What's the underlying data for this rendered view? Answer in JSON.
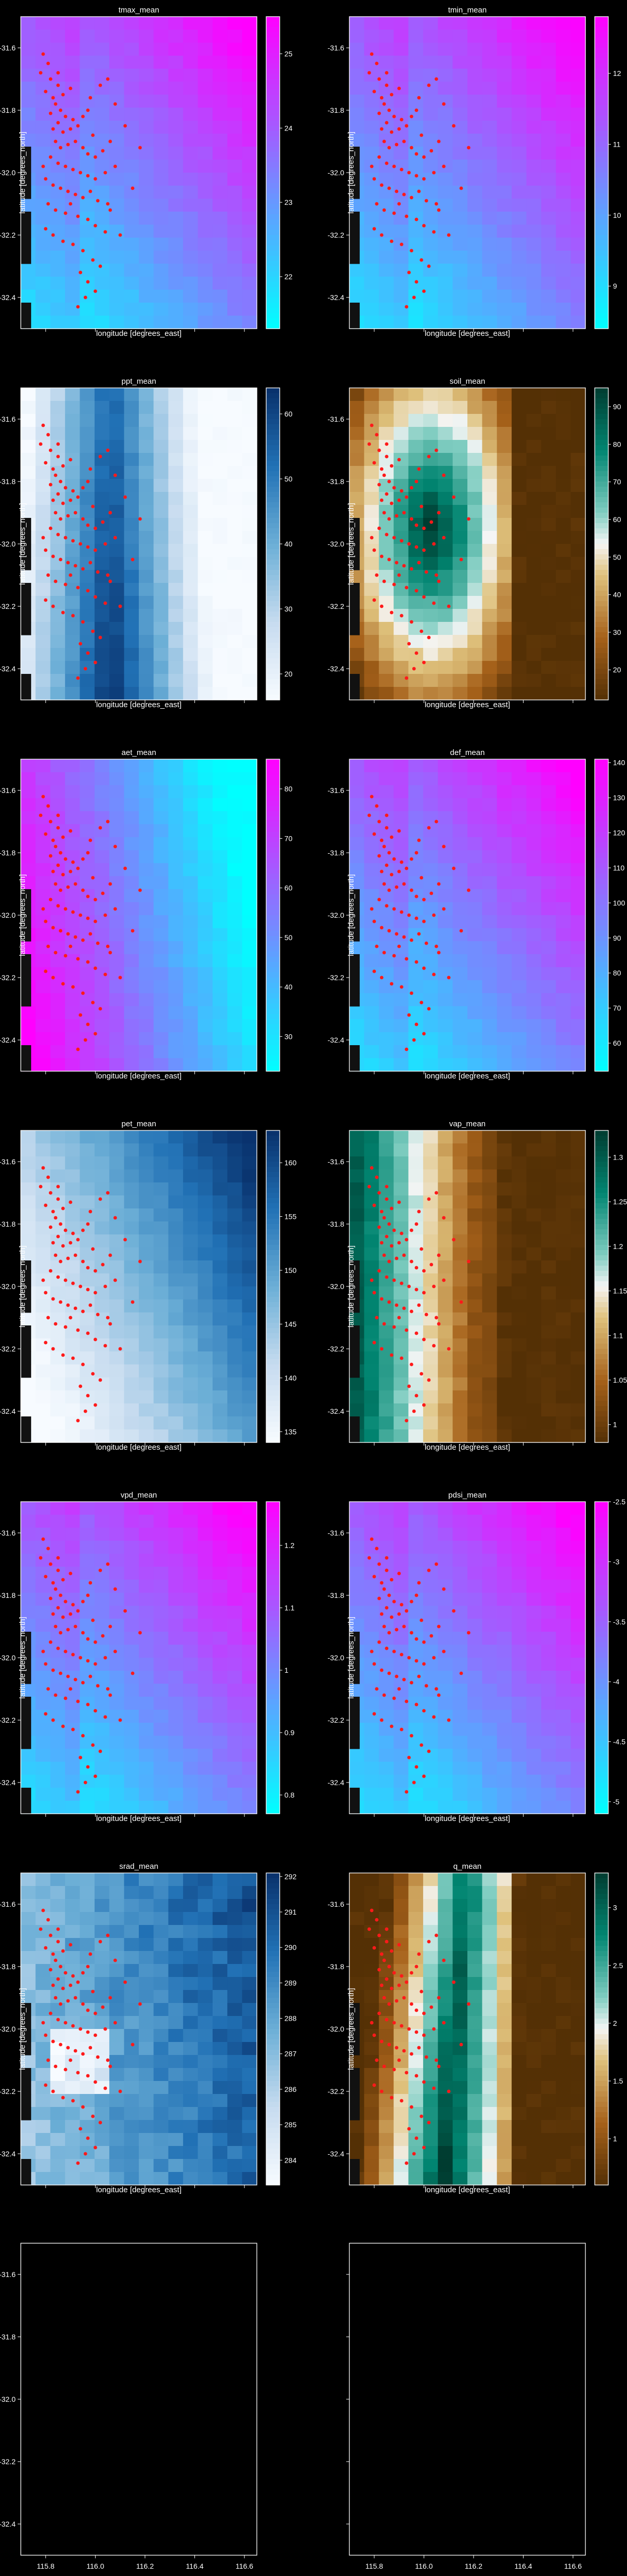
{
  "figure": {
    "background": "#000000",
    "point_color": "#ff1a1a"
  },
  "chart_data": [
    {
      "type": "heatmap",
      "title": "tmax_mean",
      "xlabel": "longitude [degrees_east]",
      "ylabel": "latitude [degrees_north]",
      "colormap": "cool",
      "pattern": "diag_low_left",
      "colorbar": {
        "ticks": [
          22,
          23,
          24,
          25
        ],
        "vmin": 21.3,
        "vmax": 25.5
      },
      "show_yticks": true,
      "show_xticks": false
    },
    {
      "type": "heatmap",
      "title": "tmin_mean",
      "xlabel": "longitude [degrees_east]",
      "ylabel": "latitude [degrees_north]",
      "colormap": "cool",
      "pattern": "diag_low_left",
      "colorbar": {
        "ticks": [
          9,
          10,
          11,
          12
        ],
        "vmin": 8.4,
        "vmax": 12.8
      },
      "show_yticks": true,
      "show_xticks": false
    },
    {
      "type": "heatmap",
      "title": "ppt_mean",
      "xlabel": "longitude [degrees_east]",
      "ylabel": "latitude [degrees_north]",
      "colormap": "blues",
      "pattern": "center_band",
      "colorbar": {
        "ticks": [
          20,
          30,
          40,
          50,
          60
        ],
        "vmin": 16,
        "vmax": 64
      },
      "show_yticks": true,
      "show_xticks": false
    },
    {
      "type": "heatmap",
      "title": "soil_mean",
      "xlabel": "longitude [degrees_east]",
      "ylabel": "latitude [degrees_north]",
      "colormap": "brbg",
      "pattern": "blob_center",
      "colorbar": {
        "ticks": [
          20,
          30,
          40,
          50,
          60,
          70,
          80,
          90
        ],
        "vmin": 12,
        "vmax": 95
      },
      "show_yticks": true,
      "show_xticks": false
    },
    {
      "type": "heatmap",
      "title": "aet_mean",
      "xlabel": "longitude [degrees_east]",
      "ylabel": "latitude [degrees_north]",
      "colormap": "cool",
      "pattern": "diag_high_left",
      "colorbar": {
        "ticks": [
          30,
          40,
          50,
          60,
          70,
          80
        ],
        "vmin": 23,
        "vmax": 86
      },
      "show_yticks": true,
      "show_xticks": false
    },
    {
      "type": "heatmap",
      "title": "def_mean",
      "xlabel": "longitude [degrees_east]",
      "ylabel": "latitude [degrees_north]",
      "colormap": "cool",
      "pattern": "diag_low_left",
      "colorbar": {
        "ticks": [
          60,
          70,
          80,
          90,
          100,
          110,
          120,
          130,
          140
        ],
        "vmin": 52,
        "vmax": 141
      },
      "show_yticks": true,
      "show_xticks": false
    },
    {
      "type": "heatmap",
      "title": "pet_mean",
      "xlabel": "longitude [degrees_east]",
      "ylabel": "latitude [degrees_north]",
      "colormap": "blues",
      "pattern": "diag_low_left_rev",
      "colorbar": {
        "ticks": [
          135,
          140,
          145,
          150,
          155,
          160
        ],
        "vmin": 134,
        "vmax": 163
      },
      "show_yticks": true,
      "show_xticks": false
    },
    {
      "type": "heatmap",
      "title": "vap_mean",
      "xlabel": "longitude [degrees_east]",
      "ylabel": "latitude [degrees_north]",
      "colormap": "brbg",
      "pattern": "left_high",
      "colorbar": {
        "ticks": [
          1.0,
          1.05,
          1.1,
          1.15,
          1.2,
          1.25,
          1.3
        ],
        "vmin": 0.98,
        "vmax": 1.33
      },
      "show_yticks": true,
      "show_xticks": false
    },
    {
      "type": "heatmap",
      "title": "vpd_mean",
      "xlabel": "longitude [degrees_east]",
      "ylabel": "latitude [degrees_north]",
      "colormap": "cool",
      "pattern": "diag_low_left",
      "colorbar": {
        "ticks": [
          0.8,
          0.9,
          1.0,
          1.1,
          1.2
        ],
        "vmin": 0.77,
        "vmax": 1.27
      },
      "show_yticks": true,
      "show_xticks": false
    },
    {
      "type": "heatmap",
      "title": "pdsi_mean",
      "xlabel": "longitude [degrees_east]",
      "ylabel": "latitude [degrees_north]",
      "colormap": "cool",
      "pattern": "diag_low_left",
      "colorbar": {
        "ticks": [
          -5.0,
          -4.5,
          -4.0,
          -3.5,
          -3.0,
          -2.5
        ],
        "vmin": -5.1,
        "vmax": -2.5
      },
      "show_yticks": true,
      "show_xticks": false
    },
    {
      "type": "heatmap",
      "title": "srad_mean",
      "xlabel": "longitude [degrees_east]",
      "ylabel": "latitude [degrees_north]",
      "colormap": "blues",
      "pattern": "noisy_east",
      "colorbar": {
        "ticks": [
          284,
          285,
          286,
          287,
          288,
          289,
          290,
          291,
          292
        ],
        "vmin": 283.3,
        "vmax": 292.1
      },
      "show_yticks": true,
      "show_xticks": false
    },
    {
      "type": "heatmap",
      "title": "q_mean",
      "xlabel": "longitude [degrees_east]",
      "ylabel": "latitude [degrees_north]",
      "colormap": "brbg",
      "pattern": "q_band",
      "colorbar": {
        "ticks": [
          1.0,
          1.5,
          2.0,
          2.5,
          3.0
        ],
        "vmin": 0.6,
        "vmax": 3.3
      },
      "show_yticks": true,
      "show_xticks": false
    },
    {
      "type": "empty",
      "title": "",
      "xlabel": "",
      "ylabel": "",
      "show_yticks": true,
      "show_xticks": true
    },
    {
      "type": "empty",
      "title": "",
      "xlabel": "",
      "ylabel": "",
      "show_yticks": false,
      "show_xticks": true
    }
  ],
  "axes": {
    "x_ticks": [
      "115.8",
      "116.0",
      "116.2",
      "116.4",
      "116.6"
    ],
    "x_tick_values": [
      115.8,
      116.0,
      116.2,
      116.4,
      116.6
    ],
    "y_ticks": [
      "-31.6",
      "-31.8",
      "-32.0",
      "-32.2",
      "-32.4"
    ],
    "y_tick_values": [
      -31.6,
      -31.8,
      -32.0,
      -32.2,
      -32.4
    ],
    "xlim": [
      115.7,
      116.65
    ],
    "ylim": [
      -32.5,
      -31.5
    ]
  },
  "points": [
    [
      115.79,
      -31.62
    ],
    [
      115.81,
      -31.65
    ],
    [
      115.78,
      -31.68
    ],
    [
      115.82,
      -31.7
    ],
    [
      115.85,
      -31.72
    ],
    [
      115.8,
      -31.74
    ],
    [
      115.83,
      -31.76
    ],
    [
      115.87,
      -31.75
    ],
    [
      115.9,
      -31.73
    ],
    [
      115.84,
      -31.78
    ],
    [
      115.86,
      -31.8
    ],
    [
      115.82,
      -31.81
    ],
    [
      115.88,
      -31.82
    ],
    [
      115.91,
      -31.83
    ],
    [
      115.85,
      -31.84
    ],
    [
      115.83,
      -31.86
    ],
    [
      115.87,
      -31.87
    ],
    [
      115.9,
      -31.86
    ],
    [
      115.93,
      -31.85
    ],
    [
      115.95,
      -31.82
    ],
    [
      115.97,
      -31.8
    ],
    [
      115.98,
      -31.76
    ],
    [
      116.02,
      -31.72
    ],
    [
      116.05,
      -31.7
    ],
    [
      115.84,
      -31.9
    ],
    [
      115.86,
      -31.92
    ],
    [
      115.89,
      -31.91
    ],
    [
      115.92,
      -31.9
    ],
    [
      115.95,
      -31.92
    ],
    [
      115.97,
      -31.94
    ],
    [
      116.0,
      -31.95
    ],
    [
      116.03,
      -31.93
    ],
    [
      116.06,
      -31.9
    ],
    [
      115.82,
      -31.95
    ],
    [
      115.85,
      -31.97
    ],
    [
      115.88,
      -31.98
    ],
    [
      115.91,
      -31.99
    ],
    [
      115.94,
      -32.0
    ],
    [
      115.97,
      -32.01
    ],
    [
      116.0,
      -32.02
    ],
    [
      116.04,
      -32.0
    ],
    [
      116.08,
      -31.98
    ],
    [
      115.8,
      -32.02
    ],
    [
      115.83,
      -32.04
    ],
    [
      115.86,
      -32.05
    ],
    [
      115.89,
      -32.06
    ],
    [
      115.92,
      -32.07
    ],
    [
      115.95,
      -32.08
    ],
    [
      115.98,
      -32.06
    ],
    [
      116.01,
      -32.09
    ],
    [
      116.05,
      -32.1
    ],
    [
      115.81,
      -32.1
    ],
    [
      115.84,
      -32.12
    ],
    [
      115.88,
      -32.13
    ],
    [
      115.93,
      -32.14
    ],
    [
      115.97,
      -32.15
    ],
    [
      116.0,
      -32.17
    ],
    [
      116.04,
      -32.19
    ],
    [
      115.8,
      -32.18
    ],
    [
      115.83,
      -32.2
    ],
    [
      115.87,
      -32.22
    ],
    [
      115.91,
      -32.23
    ],
    [
      115.95,
      -32.25
    ],
    [
      115.99,
      -32.28
    ],
    [
      116.02,
      -32.3
    ],
    [
      115.94,
      -32.32
    ],
    [
      115.97,
      -32.35
    ],
    [
      116.0,
      -32.38
    ],
    [
      115.96,
      -32.4
    ],
    [
      115.93,
      -32.43
    ],
    [
      116.08,
      -31.78
    ],
    [
      116.12,
      -31.85
    ],
    [
      116.15,
      -32.05
    ],
    [
      116.1,
      -32.2
    ],
    [
      115.79,
      -31.98
    ],
    [
      115.9,
      -32.1
    ],
    [
      116.06,
      -32.12
    ],
    [
      115.85,
      -31.68
    ],
    [
      116.18,
      -31.92
    ],
    [
      115.99,
      -31.88
    ]
  ],
  "masked_cells": [
    [
      0,
      10
    ],
    [
      0,
      11
    ],
    [
      0,
      12
    ],
    [
      0,
      13
    ],
    [
      0,
      15
    ],
    [
      0,
      16
    ],
    [
      0,
      17
    ],
    [
      0,
      18
    ],
    [
      0,
      22
    ],
    [
      0,
      23
    ]
  ]
}
